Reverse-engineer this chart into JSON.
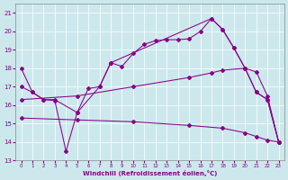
{
  "xlabel": "Windchill (Refroidissement éolien,°C)",
  "bg_color": "#cce8ec",
  "line_color": "#880088",
  "xlim": [
    -0.5,
    23.5
  ],
  "ylim": [
    13.0,
    21.5
  ],
  "yticks": [
    13,
    14,
    15,
    16,
    17,
    18,
    19,
    20,
    21
  ],
  "xticks": [
    0,
    1,
    2,
    3,
    4,
    5,
    6,
    7,
    8,
    9,
    10,
    11,
    12,
    13,
    14,
    15,
    16,
    17,
    18,
    19,
    20,
    21,
    22,
    23
  ],
  "line1_x": [
    0,
    1,
    2,
    3,
    4,
    5,
    6,
    7,
    8,
    9,
    10,
    11,
    12,
    13,
    14,
    15,
    16,
    17,
    18,
    19,
    20,
    21,
    22,
    23
  ],
  "line1_y": [
    18.0,
    16.7,
    16.3,
    16.25,
    13.5,
    15.6,
    16.9,
    17.0,
    18.3,
    18.1,
    18.8,
    19.3,
    19.5,
    19.55,
    19.55,
    19.6,
    20.0,
    20.7,
    20.1,
    19.1,
    18.0,
    16.7,
    16.3,
    14.0
  ],
  "line2_x": [
    0,
    1,
    2,
    3,
    5,
    7,
    8,
    17,
    18,
    19,
    20,
    21,
    22,
    23
  ],
  "line2_y": [
    17.0,
    16.7,
    16.3,
    16.3,
    15.6,
    17.0,
    18.3,
    20.7,
    20.1,
    19.1,
    18.0,
    16.7,
    16.3,
    14.0
  ],
  "line3_x": [
    0,
    5,
    10,
    15,
    17,
    18,
    20,
    21,
    22,
    23
  ],
  "line3_y": [
    16.3,
    16.5,
    17.0,
    17.5,
    17.75,
    17.9,
    18.0,
    17.8,
    16.5,
    14.0
  ],
  "line4_x": [
    0,
    5,
    10,
    15,
    18,
    20,
    21,
    22,
    23
  ],
  "line4_y": [
    15.3,
    15.2,
    15.1,
    14.9,
    14.75,
    14.5,
    14.3,
    14.1,
    14.0
  ]
}
